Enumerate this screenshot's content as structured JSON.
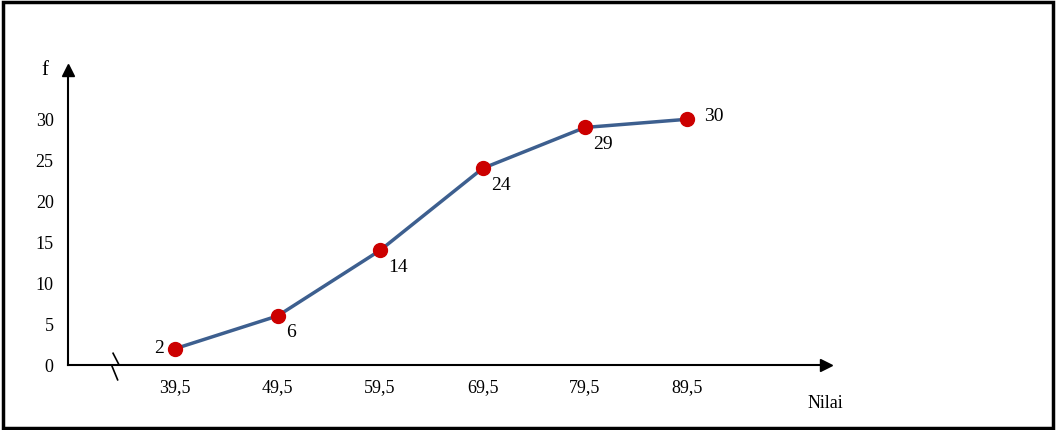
{
  "chart_data": {
    "type": "line",
    "x_label": "Nilai",
    "y_label": "f",
    "x": [
      39.5,
      49.5,
      59.5,
      69.5,
      79.5,
      89.5
    ],
    "values": [
      2,
      6,
      14,
      24,
      29,
      30
    ],
    "xlim": [
      29,
      103
    ],
    "ylim": [
      0,
      36
    ],
    "xticks": [
      {
        "value": 39.5,
        "label": "39,5"
      },
      {
        "value": 49.5,
        "label": "49,5"
      },
      {
        "value": 59.5,
        "label": "59,5"
      },
      {
        "value": 69.5,
        "label": "69,5"
      },
      {
        "value": 79.5,
        "label": "79,5"
      },
      {
        "value": 89.5,
        "label": "89,5"
      }
    ],
    "yticks": [
      0,
      5,
      10,
      15,
      20,
      25,
      30
    ],
    "color": "#3d5f8f",
    "marker": "o",
    "line_style": "solid",
    "data_labels": true,
    "grid": false
  }
}
